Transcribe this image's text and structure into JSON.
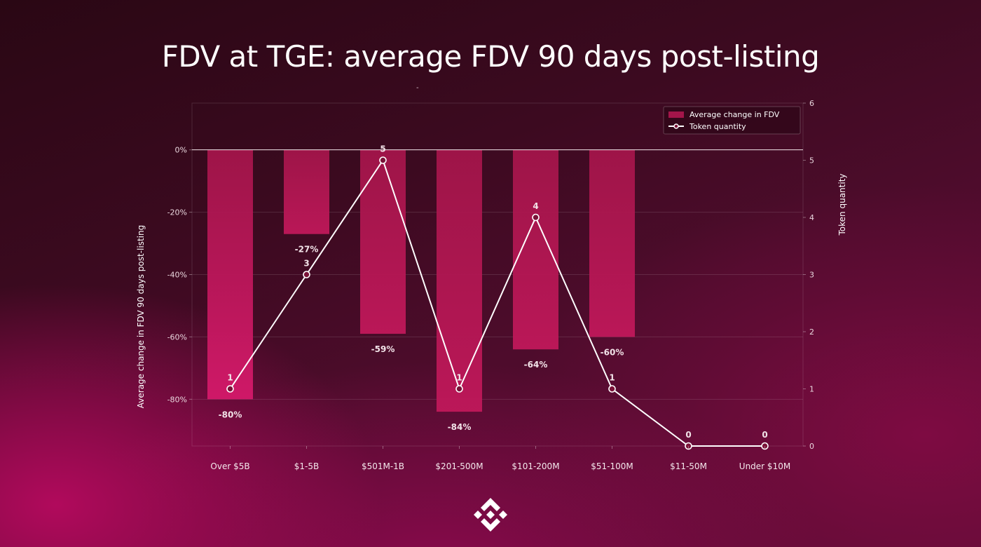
{
  "chart_data": {
    "type": "bar",
    "title": "FDV at TGE: average FDV 90 days post-listing",
    "subtitle": "-",
    "categories": [
      "Over $5B",
      "$1-5B",
      "$501M-1B",
      "$201-500M",
      "$101-200M",
      "$51-100M",
      "$11-50M",
      "Under $10M"
    ],
    "series": [
      {
        "name": "Average change in FDV",
        "type": "bar",
        "axis": "left",
        "values": [
          -80,
          -27,
          -59,
          -84,
          -64,
          -60,
          null,
          null
        ],
        "labels": [
          "-80%",
          "-27%",
          "-59%",
          "-84%",
          "-64%",
          "-60%",
          "",
          ""
        ]
      },
      {
        "name": "Token quantity",
        "type": "line",
        "axis": "right",
        "values": [
          1,
          3,
          5,
          1,
          4,
          1,
          0,
          0
        ],
        "labels": [
          "1",
          "3",
          "5",
          "1",
          "4",
          "1",
          "0",
          "0"
        ]
      }
    ],
    "ylabel": "Average change in FDV 90 days post-listing",
    "y2label": "Token quantity",
    "ylim": [
      -95,
      15
    ],
    "y2lim": [
      0,
      6
    ],
    "yticks": [
      0,
      -20,
      -40,
      -60,
      -80
    ],
    "ytick_labels": [
      "0%",
      "-20%",
      "-40%",
      "-60%",
      "-80%"
    ],
    "y2ticks": [
      0,
      1,
      2,
      3,
      4,
      5,
      6
    ],
    "y2tick_labels": [
      "0",
      "1",
      "2",
      "3",
      "4",
      "5",
      "6"
    ],
    "legend": "top-right",
    "grid": true,
    "colors": {
      "bar": "#b0154e",
      "line": "#ffffff",
      "grid": "rgba(255,255,255,0.12)",
      "zero_line": "#f2e6ea"
    }
  },
  "logo": {
    "name": "binance-logo-icon"
  }
}
